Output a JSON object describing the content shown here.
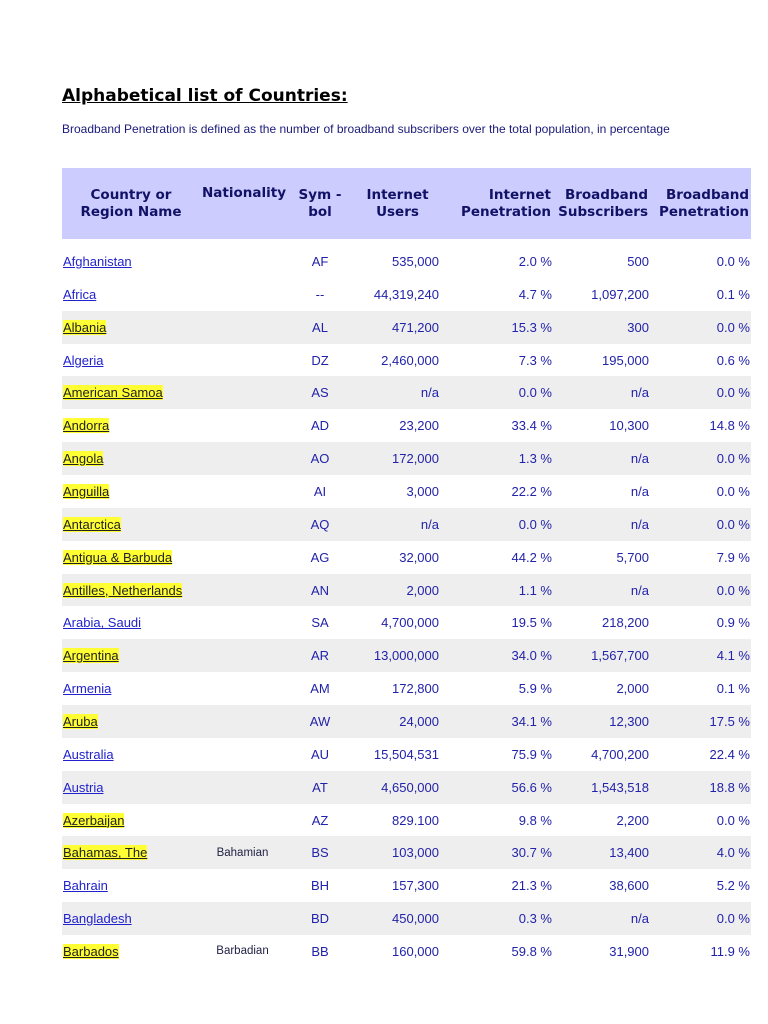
{
  "title": "Alphabetical list of Countries:",
  "description": "Broadband Penetration is defined as the number of broadband subscribers over the total population, in percentage",
  "colors": {
    "header_bg": "#ccccff",
    "highlight": "#ffff33",
    "stripe": "#eeeeee",
    "link": "#2222cc"
  },
  "columns": [
    "Country or Region Name",
    "Nationality",
    "Sym -bol",
    "Internet Users",
    "Internet Penetration",
    "Broadband Subscribers",
    "Broadband Penetration"
  ],
  "rows": [
    {
      "name": "Afghanistan",
      "nat": "",
      "sym": "AF",
      "users": "535,000",
      "ipen": "2.0 %",
      "subs": "500",
      "bpen": "0.0 %",
      "hl": false
    },
    {
      "name": "Africa",
      "nat": "",
      "sym": "--",
      "users": "44,319,240",
      "ipen": "4.7 %",
      "subs": "1,097,200",
      "bpen": "0.1 %",
      "hl": false
    },
    {
      "name": "Albania",
      "nat": "",
      "sym": "AL",
      "users": "471,200",
      "ipen": "15.3 %",
      "subs": "300",
      "bpen": "0.0 %",
      "hl": true
    },
    {
      "name": "Algeria",
      "nat": "",
      "sym": "DZ",
      "users": "2,460,000",
      "ipen": "7.3 %",
      "subs": "195,000",
      "bpen": "0.6 %",
      "hl": false
    },
    {
      "name": "American Samoa",
      "nat": "",
      "sym": "AS",
      "users": "n/a",
      "ipen": "0.0 %",
      "subs": "n/a",
      "bpen": "0.0 %",
      "hl": true
    },
    {
      "name": "Andorra",
      "nat": "",
      "sym": "AD",
      "users": "23,200",
      "ipen": "33.4 %",
      "subs": "10,300",
      "bpen": "14.8 %",
      "hl": true
    },
    {
      "name": "Angola",
      "nat": "",
      "sym": "AO",
      "users": "172,000",
      "ipen": "1.3 %",
      "subs": "n/a",
      "bpen": "0.0 %",
      "hl": true
    },
    {
      "name": "Anguilla",
      "nat": "",
      "sym": "AI",
      "users": "3,000",
      "ipen": "22.2 %",
      "subs": "n/a",
      "bpen": "0.0 %",
      "hl": true
    },
    {
      "name": "Antarctica",
      "nat": "",
      "sym": "AQ",
      "users": "n/a",
      "ipen": "0.0 %",
      "subs": "n/a",
      "bpen": "0.0 %",
      "hl": true
    },
    {
      "name": "Antigua & Barbuda",
      "nat": "",
      "sym": "AG",
      "users": "32,000",
      "ipen": "44.2 %",
      "subs": "5,700",
      "bpen": "7.9 %",
      "hl": true
    },
    {
      "name": "Antilles, Netherlands",
      "nat": "",
      "sym": "AN",
      "users": "2,000",
      "ipen": "1.1 %",
      "subs": "n/a",
      "bpen": "0.0 %",
      "hl": true
    },
    {
      "name": "Arabia, Saudi",
      "nat": "",
      "sym": "SA",
      "users": "4,700,000",
      "ipen": "19.5 %",
      "subs": "218,200",
      "bpen": "0.9 %",
      "hl": false
    },
    {
      "name": "Argentina",
      "nat": "",
      "sym": "AR",
      "users": "13,000,000",
      "ipen": "34.0 %",
      "subs": "1,567,700",
      "bpen": "4.1 %",
      "hl": true
    },
    {
      "name": "Armenia",
      "nat": "",
      "sym": "AM",
      "users": "172,800",
      "ipen": "5.9 %",
      "subs": "2,000",
      "bpen": "0.1 %",
      "hl": false
    },
    {
      "name": "Aruba",
      "nat": "",
      "sym": "AW",
      "users": "24,000",
      "ipen": "34.1 %",
      "subs": "12,300",
      "bpen": "17.5 %",
      "hl": true
    },
    {
      "name": "Australia",
      "nat": "",
      "sym": "AU",
      "users": "15,504,531",
      "ipen": "75.9 %",
      "subs": "4,700,200",
      "bpen": "22.4 %",
      "hl": false
    },
    {
      "name": "Austria",
      "nat": "",
      "sym": "AT",
      "users": "4,650,000",
      "ipen": "56.6 %",
      "subs": "1,543,518",
      "bpen": "18.8 %",
      "hl": false
    },
    {
      "name": "Azerbaijan",
      "nat": "",
      "sym": "AZ",
      "users": "829.100",
      "ipen": "9.8 %",
      "subs": "2,200",
      "bpen": "0.0 %",
      "hl": true
    },
    {
      "name": "Bahamas, The",
      "nat": "Bahamian",
      "sym": "BS",
      "users": "103,000",
      "ipen": "30.7 %",
      "subs": "13,400",
      "bpen": "4.0 %",
      "hl": true
    },
    {
      "name": "Bahrain",
      "nat": "",
      "sym": "BH",
      "users": "157,300",
      "ipen": "21.3 %",
      "subs": "38,600",
      "bpen": "5.2 %",
      "hl": false
    },
    {
      "name": "Bangladesh",
      "nat": "",
      "sym": "BD",
      "users": "450,000",
      "ipen": "0.3 %",
      "subs": "n/a",
      "bpen": "0.0 %",
      "hl": false
    },
    {
      "name": "Barbados",
      "nat": "Barbadian",
      "sym": "BB",
      "users": "160,000",
      "ipen": "59.8 %",
      "subs": "31,900",
      "bpen": "11.9 %",
      "hl": true
    }
  ]
}
